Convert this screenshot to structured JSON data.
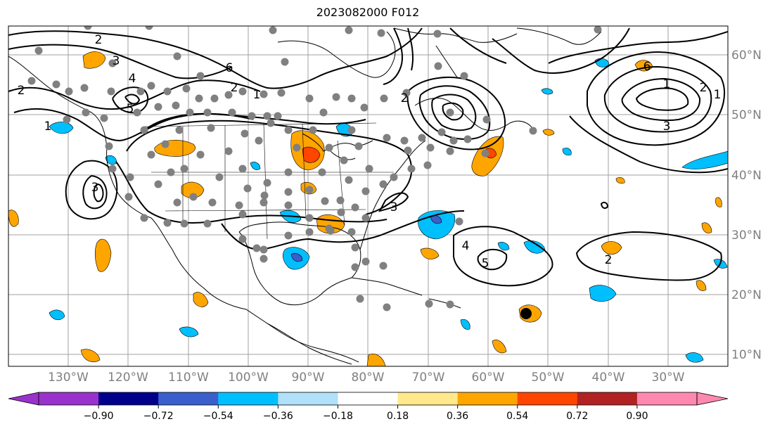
{
  "title": "2023082000 F012",
  "map": {
    "lon_labels": [
      "130°W",
      "120°W",
      "110°W",
      "100°W",
      "90°W",
      "80°W",
      "70°W",
      "60°W",
      "50°W",
      "40°W",
      "30°W"
    ],
    "lat_labels": [
      "60°N",
      "50°N",
      "40°N",
      "30°N",
      "20°N",
      "10°N"
    ],
    "contour_labels": [
      "2",
      "3",
      "4",
      "5",
      "6",
      "1",
      "2",
      "3",
      "2",
      "1",
      "2",
      "3",
      "4",
      "5",
      "6",
      "1",
      "2",
      "3",
      "1",
      "2"
    ]
  },
  "colorbar": {
    "ticks": [
      "−0.90",
      "−0.72",
      "−0.54",
      "−0.36",
      "−0.18",
      "0.18",
      "0.36",
      "0.54",
      "0.72",
      "0.90"
    ],
    "colors": [
      "#9932cc",
      "#00008b",
      "#3a5fcd",
      "#00bfff",
      "#b0e0fa",
      "#ffffff",
      "#ffe98a",
      "#ffa500",
      "#ff4500",
      "#b22222",
      "#ff88b0"
    ]
  },
  "colors": {
    "positive_light": "#ffe98a",
    "positive": "#ffa500",
    "positive_strong": "#ff4500",
    "negative_light": "#b0e0fa",
    "negative": "#00bfff",
    "negative_strong": "#3a5fcd",
    "station_dot": "#808080",
    "grid": "#a0a0a0"
  }
}
